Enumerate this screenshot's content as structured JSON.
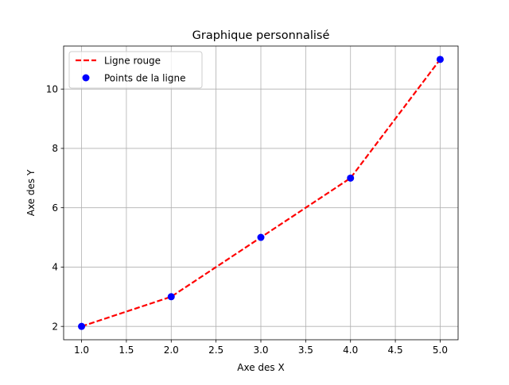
{
  "chart_data": {
    "type": "line",
    "title": "Graphique personnalisé",
    "xlabel": "Axe des X",
    "ylabel": "Axe des Y",
    "xlim": [
      0.8,
      5.2
    ],
    "ylim": [
      1.55,
      11.45
    ],
    "xticks": [
      1.0,
      1.5,
      2.0,
      2.5,
      3.0,
      3.5,
      4.0,
      4.5,
      5.0
    ],
    "xtick_labels": [
      "1.0",
      "1.5",
      "2.0",
      "2.5",
      "3.0",
      "3.5",
      "4.0",
      "4.5",
      "5.0"
    ],
    "yticks": [
      2,
      4,
      6,
      8,
      10
    ],
    "ytick_labels": [
      "2",
      "4",
      "6",
      "8",
      "10"
    ],
    "grid": true,
    "legend_position": "top-left",
    "series": [
      {
        "name": "Ligne rouge",
        "kind": "line",
        "style": "dashed",
        "color": "#ff0000",
        "x": [
          1,
          2,
          3,
          4,
          5
        ],
        "y": [
          2,
          3,
          5,
          7,
          11
        ]
      },
      {
        "name": "Points de la ligne",
        "kind": "scatter",
        "color": "#0000ff",
        "x": [
          1,
          2,
          3,
          4,
          5
        ],
        "y": [
          2,
          3,
          5,
          7,
          11
        ]
      }
    ],
    "legend": [
      {
        "label": "Ligne rouge",
        "marker": "dashed-line",
        "color": "#ff0000"
      },
      {
        "label": "Points de la ligne",
        "marker": "dot",
        "color": "#0000ff"
      }
    ]
  }
}
